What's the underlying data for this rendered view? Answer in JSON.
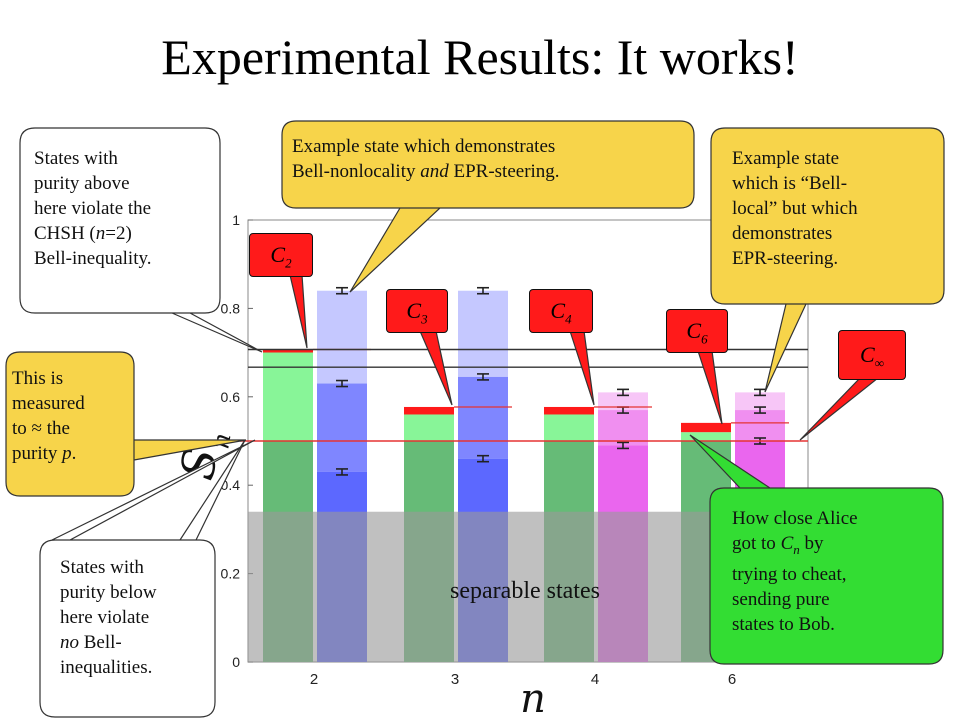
{
  "slide": {
    "title": "Experimental Results: It works!"
  },
  "chart_data": {
    "type": "bar",
    "xlabel": "n",
    "ylabel": "S",
    "ylabel_sub": "n",
    "ylim": [
      0,
      1
    ],
    "yticks": [
      "0",
      "0.2",
      "0.4",
      "0.6",
      "0.8",
      "1"
    ],
    "categories": [
      "2",
      "3",
      "4",
      "6"
    ],
    "reference_lines": [
      0.707,
      0.667
    ],
    "purity_line": 0.5,
    "separable_region_top": 0.34,
    "separable_label": "separable states",
    "series": [
      {
        "group": "Cn (bound)",
        "values": [
          0.707,
          0.577,
          0.577,
          0.541
        ]
      },
      {
        "group": "measured",
        "cheat": [
          0.707,
          0.56,
          0.56,
          0.52
        ],
        "upper": [
          0.84,
          0.84,
          0.61,
          0.61
        ],
        "mid": [
          0.63,
          0.645,
          0.57,
          0.57
        ],
        "low": [
          0.43,
          0.46,
          0.49,
          0.5
        ]
      }
    ],
    "bound_labels": [
      {
        "base": "C",
        "sub": "2"
      },
      {
        "base": "C",
        "sub": "3"
      },
      {
        "base": "C",
        "sub": "4"
      },
      {
        "base": "C",
        "sub": "6"
      },
      {
        "base": "C",
        "sub": "∞"
      }
    ]
  },
  "callouts": {
    "chsh": [
      "States with",
      "purity above",
      "here violate the",
      "CHSH (n=2)",
      "Bell-inequality."
    ],
    "measured": [
      "This is",
      "measured",
      "to ≈ the",
      "purity p."
    ],
    "no_bell": [
      "States with",
      "purity below",
      "here violate",
      "no Bell-",
      "inequalities."
    ],
    "example_both": [
      "Example state which demonstrates",
      "Bell-nonlocality and EPR-steering."
    ],
    "example_local": [
      "Example state",
      "which is “Bell-",
      "local” but which",
      "demonstrates",
      "EPR-steering."
    ],
    "alice": [
      "How close Alice",
      "got to Cn by",
      "trying to cheat,",
      "sending pure",
      "states to Bob."
    ]
  },
  "colors": {
    "callout_white": "#ffffff",
    "callout_yellow": "#f7d44a",
    "callout_green": "#33dd33",
    "bound_red": "#ff1a1a",
    "green_bar": "#88f598",
    "green_dark": "#66bb77",
    "blue_light": "#c5c8ff",
    "blue_mid": "#7f86ff",
    "blue_dark": "#5c68ff",
    "pink_light": "#f7c6f7",
    "pink_mid": "#f08ff0",
    "magenta": "#ea66ee",
    "separable_gray": "#9a9a9a"
  }
}
